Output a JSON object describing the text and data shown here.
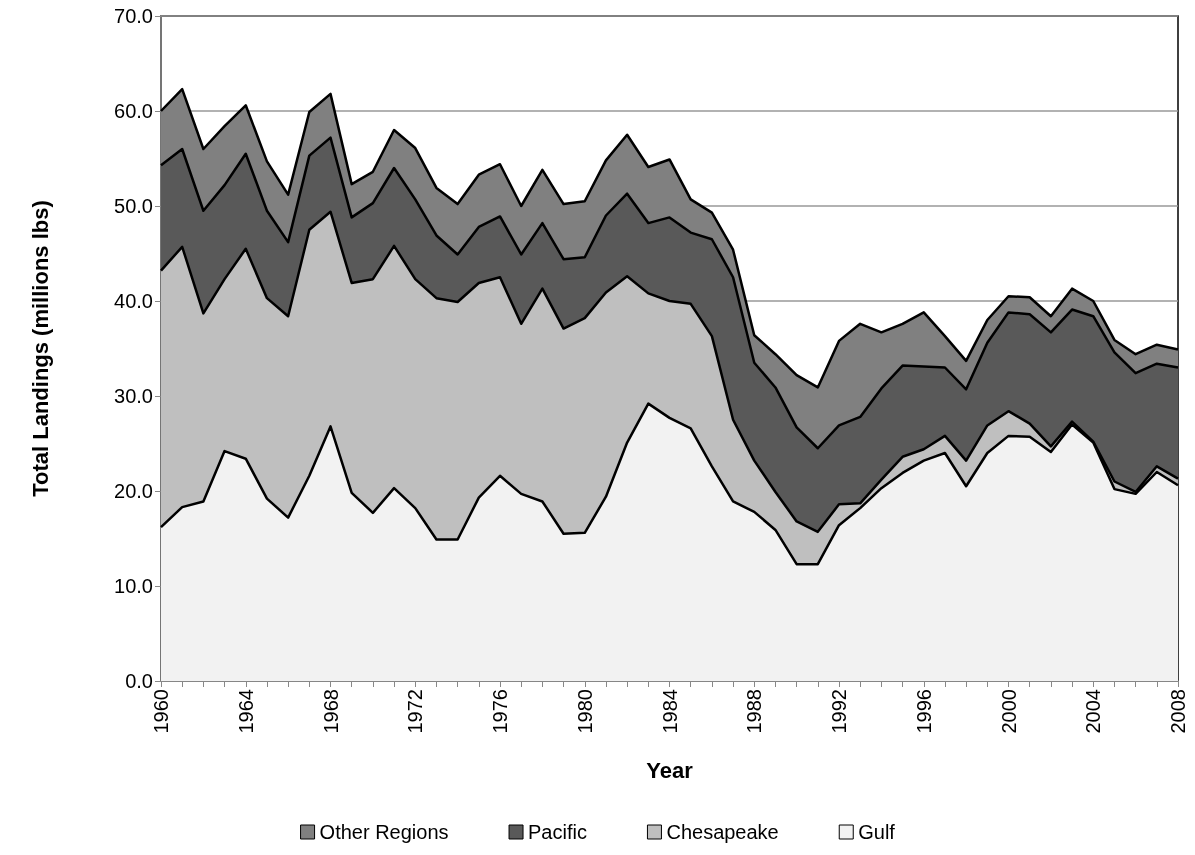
{
  "chart_data": {
    "type": "area",
    "stacked": true,
    "xlabel": "Year",
    "ylabel": "Total Landings (millions lbs)",
    "x": [
      1960,
      1961,
      1962,
      1963,
      1964,
      1965,
      1966,
      1967,
      1968,
      1969,
      1970,
      1971,
      1972,
      1973,
      1974,
      1975,
      1976,
      1977,
      1978,
      1979,
      1980,
      1981,
      1982,
      1983,
      1984,
      1985,
      1986,
      1987,
      1988,
      1989,
      1990,
      1991,
      1992,
      1993,
      1994,
      1995,
      1996,
      1997,
      1998,
      1999,
      2000,
      2001,
      2002,
      2003,
      2004,
      2005,
      2006,
      2007,
      2008
    ],
    "series": [
      {
        "name": "Gulf",
        "color": "#f2f2f2",
        "values": [
          16.2,
          18.3,
          18.9,
          24.2,
          23.4,
          19.2,
          17.2,
          21.6,
          26.8,
          19.8,
          17.7,
          20.3,
          18.2,
          14.9,
          14.9,
          19.3,
          21.6,
          19.7,
          18.9,
          15.5,
          15.6,
          19.4,
          25.1,
          29.2,
          27.7,
          26.6,
          22.6,
          18.9,
          17.8,
          15.9,
          12.3,
          12.3,
          16.4,
          18.2,
          20.3,
          21.9,
          23.2,
          24.0,
          20.5,
          24.0,
          25.8,
          25.7,
          24.1,
          27.0,
          25.1,
          20.2,
          19.7,
          22.0,
          20.6
        ]
      },
      {
        "name": "Chesapeake",
        "color": "#bfbfbf",
        "values": [
          27.0,
          27.4,
          19.8,
          18.1,
          22.1,
          21.1,
          21.2,
          25.9,
          22.6,
          22.1,
          24.6,
          25.5,
          24.1,
          25.4,
          25.0,
          22.6,
          20.9,
          17.9,
          22.4,
          21.6,
          22.6,
          21.5,
          17.5,
          11.6,
          12.3,
          13.1,
          13.7,
          8.6,
          5.4,
          4.0,
          4.5,
          3.4,
          2.2,
          0.5,
          0.9,
          1.7,
          1.2,
          1.8,
          2.7,
          2.9,
          2.6,
          1.4,
          0.6,
          0.3,
          0.1,
          0.8,
          0.2,
          0.6,
          0.7
        ]
      },
      {
        "name": "Pacific",
        "color": "#595959",
        "values": [
          11.1,
          10.3,
          10.8,
          9.9,
          10.0,
          9.2,
          7.8,
          7.8,
          7.8,
          6.9,
          8.0,
          8.2,
          8.4,
          6.6,
          5.0,
          5.9,
          6.4,
          7.3,
          6.9,
          7.3,
          6.4,
          8.1,
          8.7,
          7.4,
          8.8,
          7.5,
          10.2,
          15.0,
          10.3,
          11.0,
          9.9,
          8.8,
          8.3,
          9.1,
          9.6,
          9.6,
          8.7,
          7.2,
          7.5,
          8.7,
          10.4,
          11.5,
          12.0,
          11.8,
          13.2,
          13.6,
          12.5,
          10.8,
          11.7
        ]
      },
      {
        "name": "Other Regions",
        "color": "#808080",
        "values": [
          5.7,
          6.3,
          6.5,
          6.2,
          5.1,
          5.2,
          5.0,
          4.6,
          4.6,
          3.5,
          3.3,
          4.0,
          5.4,
          5.0,
          5.3,
          5.5,
          5.5,
          5.1,
          5.6,
          5.8,
          5.9,
          5.8,
          6.2,
          5.9,
          6.1,
          3.5,
          2.8,
          2.9,
          2.9,
          3.5,
          5.5,
          6.4,
          8.9,
          9.8,
          5.9,
          4.4,
          5.7,
          3.3,
          3.0,
          2.4,
          1.7,
          1.8,
          1.7,
          2.2,
          1.6,
          1.3,
          2.0,
          2.0,
          1.9
        ]
      }
    ],
    "xlim": [
      1960,
      2008
    ],
    "xticks": [
      1960,
      {
        "value": 1961,
        "label": null
      },
      {
        "value": 1962,
        "label": null
      },
      {
        "value": 1963,
        "label": null
      },
      1964,
      {
        "value": 1965,
        "label": null
      },
      {
        "value": 1966,
        "label": null
      },
      {
        "value": 1967,
        "label": null
      },
      1968,
      {
        "value": 1969,
        "label": null
      },
      {
        "value": 1970,
        "label": null
      },
      {
        "value": 1971,
        "label": null
      },
      1972,
      {
        "value": 1973,
        "label": null
      },
      {
        "value": 1974,
        "label": null
      },
      {
        "value": 1975,
        "label": null
      },
      1976,
      {
        "value": 1977,
        "label": null
      },
      {
        "value": 1978,
        "label": null
      },
      {
        "value": 1979,
        "label": null
      },
      1980,
      {
        "value": 1981,
        "label": null
      },
      {
        "value": 1982,
        "label": null
      },
      {
        "value": 1983,
        "label": null
      },
      1984,
      {
        "value": 1985,
        "label": null
      },
      {
        "value": 1986,
        "label": null
      },
      {
        "value": 1987,
        "label": null
      },
      1988,
      {
        "value": 1989,
        "label": null
      },
      {
        "value": 1990,
        "label": null
      },
      {
        "value": 1991,
        "label": null
      },
      1992,
      {
        "value": 1993,
        "label": null
      },
      {
        "value": 1994,
        "label": null
      },
      {
        "value": 1995,
        "label": null
      },
      1996,
      {
        "value": 1997,
        "label": null
      },
      {
        "value": 1998,
        "label": null
      },
      {
        "value": 1999,
        "label": null
      },
      2000,
      {
        "value": 2001,
        "label": null
      },
      {
        "value": 2002,
        "label": null
      },
      {
        "value": 2003,
        "label": null
      },
      2004,
      {
        "value": 2005,
        "label": null
      },
      {
        "value": 2006,
        "label": null
      },
      {
        "value": 2007,
        "label": null
      },
      2008
    ],
    "ylim": [
      0,
      70
    ],
    "yticks": [
      {
        "value": 0,
        "label": "0.0"
      },
      {
        "value": 10,
        "label": "10.0"
      },
      {
        "value": 20,
        "label": "20.0"
      },
      {
        "value": 30,
        "label": "30.0"
      },
      {
        "value": 40,
        "label": "40.0"
      },
      {
        "value": 50,
        "label": "50.0"
      },
      {
        "value": 60,
        "label": "60.0"
      },
      {
        "value": 70,
        "label": "70.0"
      }
    ],
    "grid": "y",
    "legend": "bottom",
    "marker": "none",
    "line_style": "solid"
  }
}
